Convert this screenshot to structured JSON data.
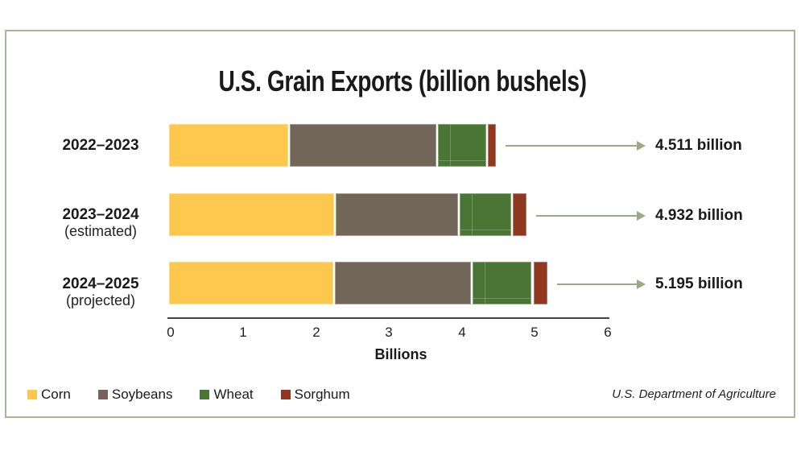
{
  "title": "U.S. Grain Exports (billion bushels)",
  "colors": {
    "corn": "#fec74e",
    "soybeans": "#726658",
    "wheat": "#4b7535",
    "sorghum": "#8f381f",
    "arrow": "#9aaa86",
    "frame": "#a9b395"
  },
  "rows": [
    {
      "year": "2022–2023",
      "sub": "",
      "total_label": "4.511 billion"
    },
    {
      "year": "2023–2024",
      "sub": "(estimated)",
      "total_label": "4.932 billion"
    },
    {
      "year": "2024–2025",
      "sub": "(projected)",
      "total_label": "5.195 billion"
    }
  ],
  "axis": {
    "ticks": [
      "0",
      "1",
      "2",
      "3",
      "4",
      "5",
      "6"
    ],
    "label": "Billions"
  },
  "legend": [
    {
      "label": "Corn",
      "key": "corn"
    },
    {
      "label": "Soybeans",
      "key": "soybeans"
    },
    {
      "label": "Wheat",
      "key": "wheat"
    },
    {
      "label": "Sorghum",
      "key": "sorghum"
    }
  ],
  "source": "U.S. Department of Agriculture",
  "chart_data": {
    "type": "bar",
    "orientation": "horizontal",
    "stacked": true,
    "title": "U.S. Grain Exports (billion bushels)",
    "categories": [
      "2022–2023",
      "2023–2024 (estimated)",
      "2024–2025 (projected)"
    ],
    "series": [
      {
        "name": "Corn",
        "values": [
          1.66,
          2.29,
          2.28
        ]
      },
      {
        "name": "Soybeans",
        "values": [
          2.03,
          1.7,
          1.89
        ]
      },
      {
        "name": "Wheat",
        "values": [
          0.69,
          0.73,
          0.83
        ]
      },
      {
        "name": "Sorghum",
        "values": [
          0.13,
          0.21,
          0.21
        ]
      }
    ],
    "totals": [
      4.511,
      4.932,
      5.195
    ],
    "annotations": [
      "4.511 billion",
      "4.932 billion",
      "5.195 billion"
    ],
    "xlabel": "Billions",
    "ylabel": "",
    "xlim": [
      0,
      6
    ],
    "xticks": [
      0,
      1,
      2,
      3,
      4,
      5,
      6
    ],
    "grid": false,
    "legend_position": "bottom-left",
    "source": "U.S. Department of Agriculture"
  }
}
